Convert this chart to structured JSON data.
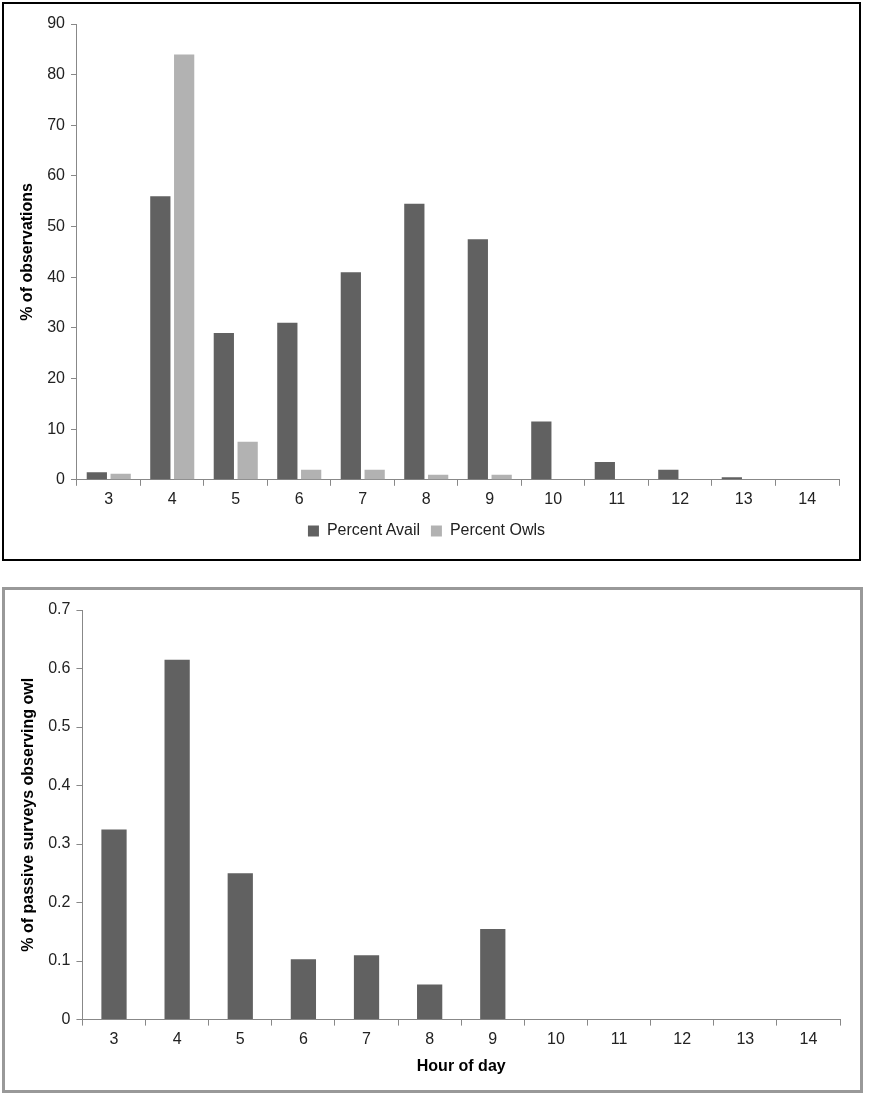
{
  "chart_data": [
    {
      "type": "bar",
      "ylabel": "% of observations",
      "categories": [
        "3",
        "4",
        "5",
        "6",
        "7",
        "8",
        "9",
        "10",
        "11",
        "12",
        "13",
        "14"
      ],
      "series": [
        {
          "name": "Percent Avail",
          "color": "#616161",
          "values": [
            1.5,
            56,
            29,
            31,
            41,
            54.5,
            47.5,
            11.5,
            3.5,
            2,
            0.5,
            0
          ]
        },
        {
          "name": "Percent Owls",
          "color": "#b2b2b2",
          "values": [
            1.2,
            84,
            7.5,
            2,
            2,
            1,
            1,
            0,
            0,
            0,
            0,
            0
          ]
        }
      ],
      "ylim": [
        0,
        90
      ],
      "yticks": [
        0,
        10,
        20,
        30,
        40,
        50,
        60,
        70,
        80,
        90
      ],
      "grid": false,
      "legend": "bottom"
    },
    {
      "type": "bar",
      "xlabel": "Hour of day",
      "ylabel": "% of passive surveys observing owl",
      "categories": [
        "3",
        "4",
        "5",
        "6",
        "7",
        "8",
        "9",
        "10",
        "11",
        "12",
        "13",
        "14"
      ],
      "values": [
        0.325,
        0.615,
        0.25,
        0.103,
        0.11,
        0.06,
        0.155,
        0,
        0,
        0,
        0,
        0
      ],
      "color": "#616161",
      "ylim": [
        0,
        0.7
      ],
      "yticks": [
        0,
        0.1,
        0.2,
        0.3,
        0.4,
        0.5,
        0.6,
        0.7
      ],
      "grid": false,
      "legend": false
    }
  ]
}
